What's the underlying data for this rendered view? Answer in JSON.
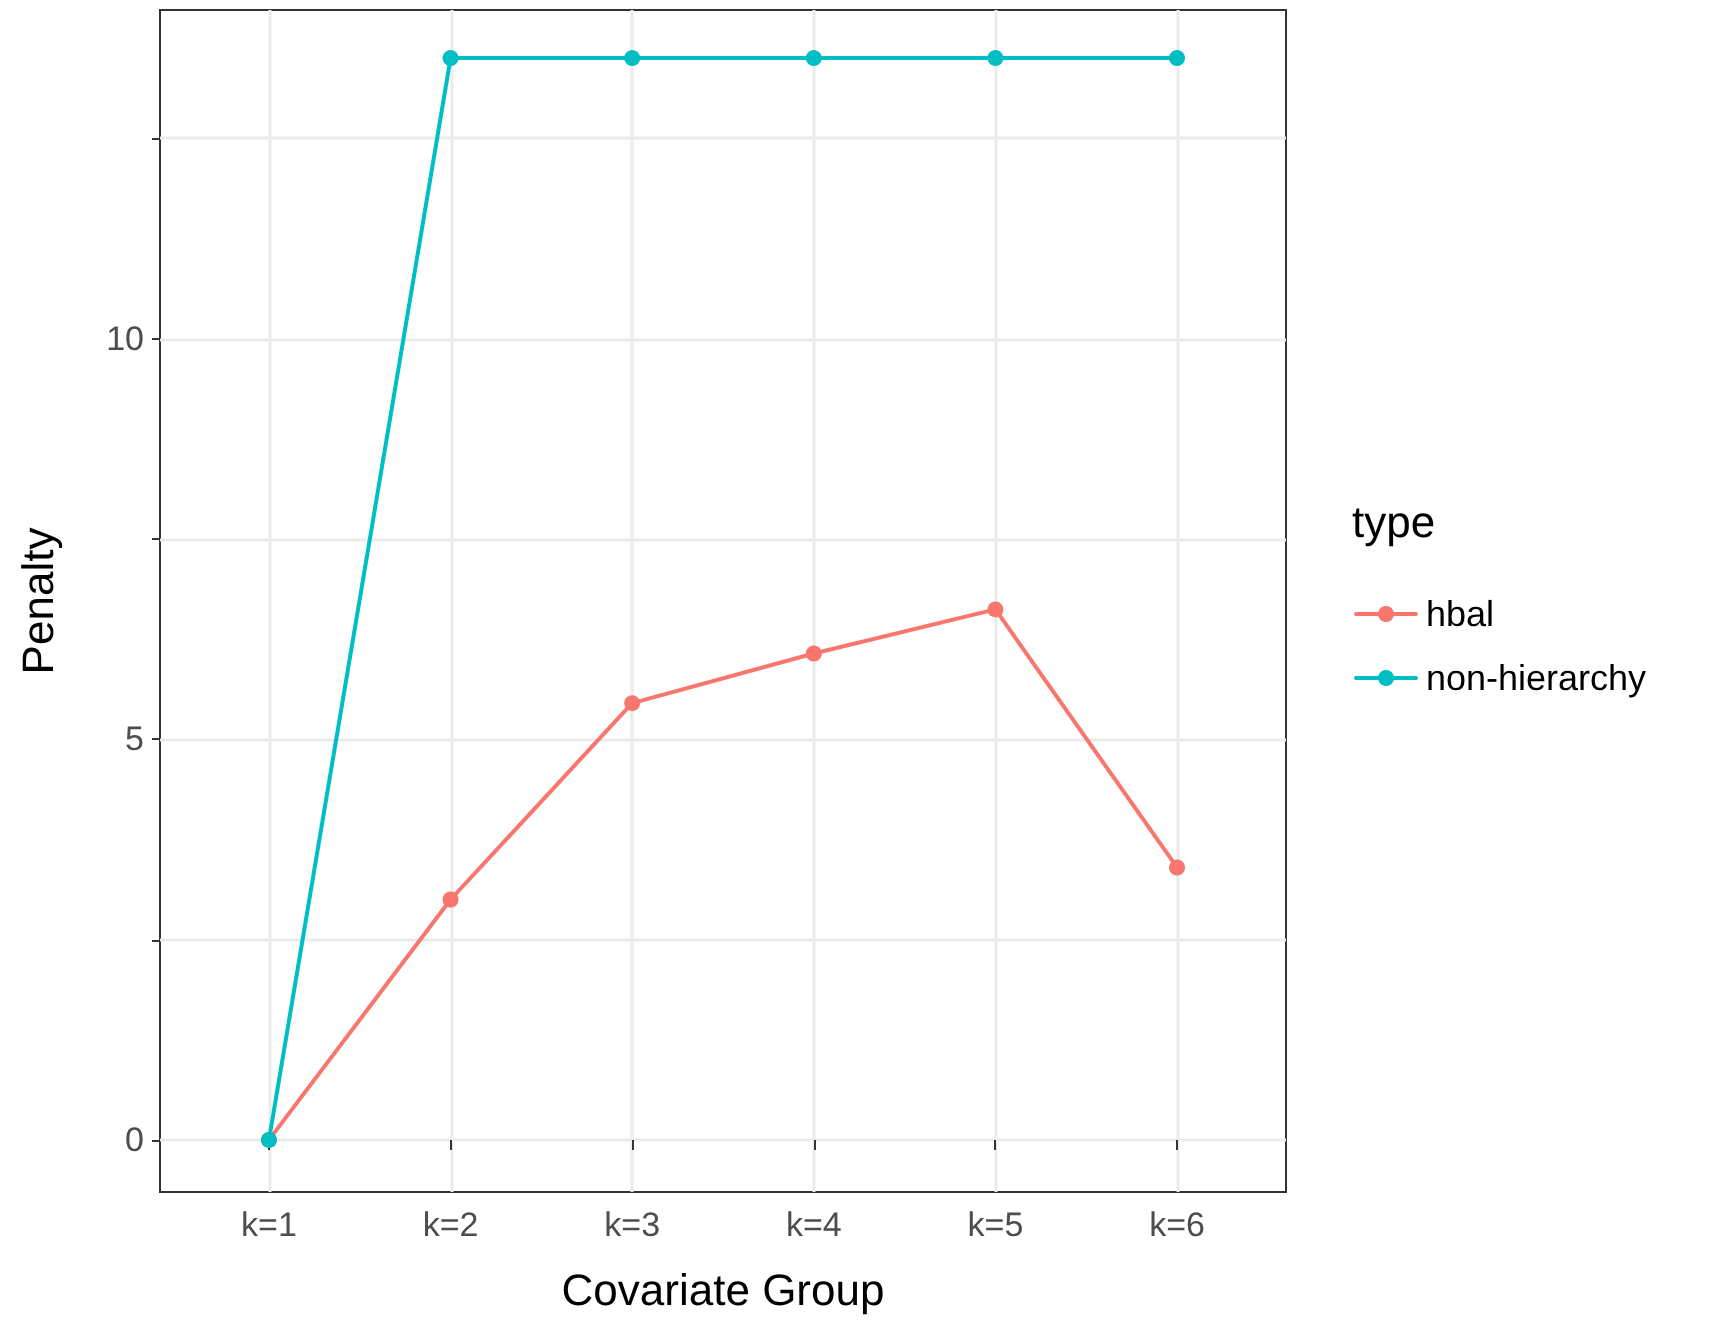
{
  "chart_data": {
    "type": "line",
    "xlabel": "Covariate Group",
    "ylabel": "Penalty",
    "legend_title": "type",
    "categories": [
      "k=1",
      "k=2",
      "k=3",
      "k=4",
      "k=5",
      "k=6"
    ],
    "series": [
      {
        "name": "hbal",
        "color": "#f8766d",
        "values": [
          0,
          3.0,
          5.45,
          6.07,
          6.62,
          3.4
        ]
      },
      {
        "name": "non-hierarchy",
        "color": "#00bfc4",
        "values": [
          0,
          13.5,
          13.5,
          13.5,
          13.5,
          13.5
        ]
      }
    ],
    "ylim": [
      -0.65,
      14.1
    ],
    "yticks": [
      0,
      {
        "value": 2.5,
        "label": null
      },
      5,
      {
        "value": 7.5,
        "label": null
      },
      10,
      {
        "value": 12.5,
        "label": null
      }
    ],
    "grid": true,
    "legend": "right",
    "marker": "circle",
    "line_style": "solid"
  }
}
